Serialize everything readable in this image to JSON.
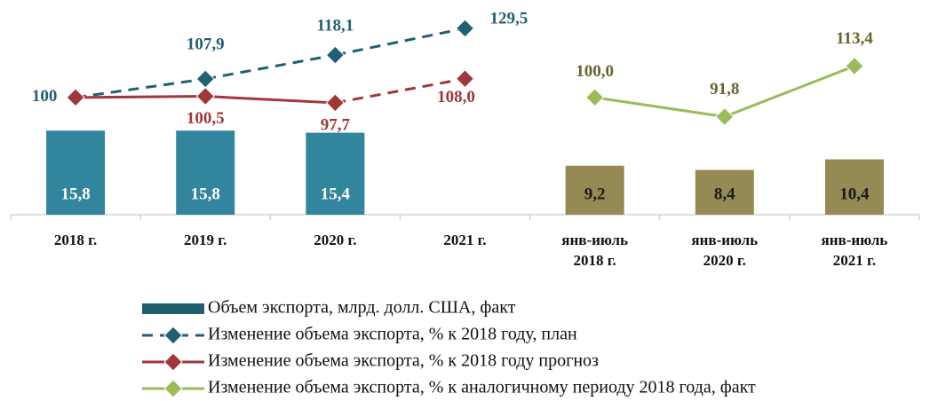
{
  "chart_data": {
    "type": "combo",
    "categories": [
      [
        "2018 г."
      ],
      [
        "2019 г."
      ],
      [
        "2020 г."
      ],
      [
        "2021 г."
      ],
      [
        "янв-июль",
        "2018 г."
      ],
      [
        "янв-июль",
        "2020 г."
      ],
      [
        "янв-июль",
        "2021 г."
      ]
    ],
    "ylim": [
      0,
      37
    ],
    "y2lim": [
      50,
      134
    ],
    "legend": "bottom",
    "series": [
      {
        "name": "Объем экспорта, млрд. долл. США, факт",
        "type": "bar",
        "color": "#1f5f70",
        "point_colors": [
          "#31859c",
          "#31859c",
          "#31859c",
          null,
          "#948a54",
          "#948a54",
          "#948a54"
        ],
        "label_colors": [
          "#ffffff",
          "#ffffff",
          "#ffffff",
          null,
          "#1a1a1a",
          "#1a1a1a",
          "#1a1a1a"
        ],
        "values": [
          15.8,
          15.8,
          15.4,
          null,
          9.2,
          8.4,
          10.4
        ],
        "value_labels": [
          "15,8",
          "15,8",
          "15,4",
          null,
          "9,2",
          "8,4",
          "10,4"
        ]
      },
      {
        "name": "Изменение объема экспорта, % к 2018 году, план",
        "type": "line",
        "axis": "y2",
        "color": "#215f73",
        "label_color": "#215f73",
        "dashed_from": 0,
        "values": [
          100,
          107.9,
          118.1,
          129.5,
          null,
          null,
          null
        ],
        "value_labels": [
          "100",
          "107,9",
          "118,1",
          "129,5",
          null,
          null,
          null
        ]
      },
      {
        "name": "Изменение объема экспорта, % к 2018 году прогноз",
        "type": "line",
        "axis": "y2",
        "color": "#a0373a",
        "label_color": "#a0373a",
        "dashed_from": 2,
        "values": [
          100,
          100.5,
          97.7,
          108.0,
          null,
          null,
          null
        ],
        "value_labels": [
          null,
          "100,5",
          "97,7",
          "108,0",
          null,
          null,
          null
        ]
      },
      {
        "name": "Изменение объема экспорта, % к аналогичному периоду 2018 года, факт",
        "type": "line",
        "axis": "y2",
        "color": "#9bbb59",
        "label_color": "#6b6230",
        "values": [
          null,
          null,
          null,
          null,
          100.0,
          91.8,
          113.4
        ],
        "value_labels": [
          null,
          null,
          null,
          null,
          "100,0",
          "91,8",
          "113,4"
        ]
      }
    ]
  }
}
